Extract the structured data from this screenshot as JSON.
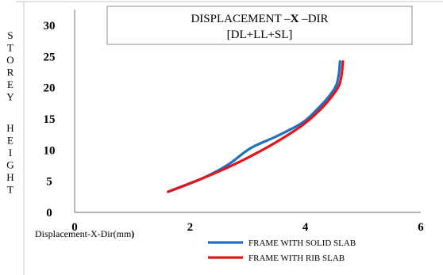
{
  "chart_data": {
    "type": "line",
    "title_line1_prefix": "DISPLACEMENT  –",
    "title_line1_bold": "X",
    "title_line1_suffix": " –DIR",
    "title_line2": "[DL+LL+SL]",
    "xlabel": "Displacement-X-Dir(mm",
    "xlabel_close": ")",
    "ylabel_word1": [
      "S",
      "T",
      "O",
      "R",
      "E",
      "Y"
    ],
    "ylabel_word2": [
      "H",
      "E",
      "I",
      "G",
      "H",
      "T"
    ],
    "xlim": [
      0,
      6
    ],
    "ylim": [
      0,
      30
    ],
    "x_ticks": [
      "0",
      "2",
      "4",
      "6"
    ],
    "y_ticks": [
      "0",
      "5",
      "10",
      "15",
      "20",
      "25",
      "30"
    ],
    "grid": false,
    "legend_position": "bottom-right",
    "series": [
      {
        "name": "FRAME WITH SOLID SLAB",
        "color": "#1f6fc5",
        "points": [
          [
            1.62,
            3.3
          ],
          [
            2.2,
            5.4
          ],
          [
            2.65,
            7.6
          ],
          [
            3.05,
            10.3
          ],
          [
            3.5,
            12.2
          ],
          [
            3.95,
            14.4
          ],
          [
            4.2,
            16.5
          ],
          [
            4.4,
            18.5
          ],
          [
            4.53,
            20.3
          ],
          [
            4.58,
            22.2
          ],
          [
            4.6,
            24.2
          ]
        ]
      },
      {
        "name": "FRAME WITH RIB SLAB",
        "color": "#e0161b",
        "points": [
          [
            1.62,
            3.3
          ],
          [
            2.2,
            5.4
          ],
          [
            2.65,
            7.2
          ],
          [
            3.05,
            9.0
          ],
          [
            3.5,
            11.3
          ],
          [
            3.95,
            14.0
          ],
          [
            4.25,
            16.4
          ],
          [
            4.45,
            18.5
          ],
          [
            4.58,
            20.3
          ],
          [
            4.63,
            22.2
          ],
          [
            4.65,
            24.2
          ]
        ]
      }
    ]
  }
}
